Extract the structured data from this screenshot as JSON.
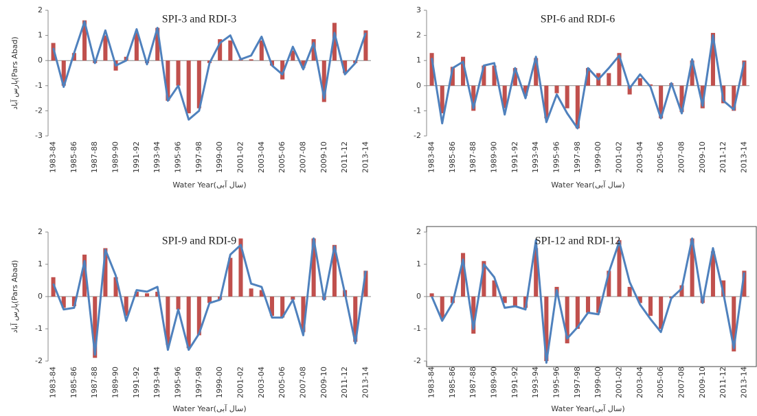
{
  "chart_data": [
    {
      "type": "combo",
      "title": "SPI-3 and RDI-3",
      "x_label": "Water Year(سال آبی)",
      "y_label": "پارس آباد(Pars Abad)",
      "categories": [
        "1983-84",
        null,
        "1985-86",
        null,
        "1987-88",
        null,
        "1989-90",
        null,
        "1991-92",
        null,
        "1993-94",
        null,
        "1995-96",
        null,
        "1997-98",
        null,
        "1999-00",
        null,
        "2001-02",
        null,
        "2003-04",
        null,
        "2005-06",
        null,
        "2007-08",
        null,
        "2009-10",
        null,
        "2011-12",
        null,
        "2013-14"
      ],
      "ylim": [
        -3,
        2
      ],
      "yticks": [
        -3,
        -2,
        -1,
        0,
        1,
        2
      ],
      "series": [
        {
          "type": "bar",
          "color": "#c0504d",
          "values": [
            0.7,
            -1.0,
            0.3,
            1.6,
            -0.1,
            1.0,
            -0.4,
            0.15,
            1.1,
            -0.1,
            1.3,
            -1.6,
            -1.0,
            -2.1,
            -1.9,
            -0.1,
            0.85,
            0.8,
            0.05,
            0.05,
            0.8,
            -0.2,
            -0.75,
            0.4,
            -0.3,
            0.85,
            -1.65,
            1.5,
            -0.5,
            -0.1,
            1.2
          ]
        },
        {
          "type": "line",
          "color": "#4f81bd",
          "values": [
            0.5,
            -1.05,
            0.3,
            1.55,
            -0.1,
            1.2,
            -0.2,
            0.0,
            1.25,
            -0.15,
            1.3,
            -1.6,
            -1.0,
            -2.35,
            -2.0,
            -0.1,
            0.7,
            1.0,
            0.05,
            0.2,
            0.95,
            -0.2,
            -0.55,
            0.55,
            -0.35,
            0.7,
            -1.5,
            1.1,
            -0.55,
            -0.1,
            1.1
          ]
        }
      ]
    },
    {
      "type": "combo",
      "title": "SPI-6 and RDI-6",
      "x_label": "Water Year(سال آبی)",
      "categories": [
        "1983-84",
        null,
        "1985-86",
        null,
        "1987-88",
        null,
        "1989-90",
        null,
        "1991-92",
        null,
        "1993-94",
        null,
        "1995-96",
        null,
        "1997-98",
        null,
        "1999-00",
        null,
        "2001-02",
        null,
        "2003-04",
        null,
        "2005-06",
        null,
        "2007-08",
        null,
        "2009-10",
        null,
        "2011-12",
        null,
        "2013-14"
      ],
      "ylim": [
        -2,
        3
      ],
      "yticks": [
        -2,
        -1,
        0,
        1,
        2,
        3
      ],
      "series": [
        {
          "type": "bar",
          "color": "#c0504d",
          "values": [
            1.3,
            -1.1,
            0.75,
            1.15,
            -1.0,
            0.8,
            0.8,
            -0.9,
            0.7,
            -0.4,
            1.1,
            -1.3,
            -0.3,
            -0.9,
            -1.7,
            0.7,
            0.5,
            0.5,
            1.3,
            -0.35,
            0.3,
            0.05,
            -1.3,
            0.1,
            -1.05,
            1.0,
            -0.9,
            2.1,
            -0.7,
            -1.0,
            1.0
          ]
        },
        {
          "type": "line",
          "color": "#4f81bd",
          "values": [
            1.1,
            -1.5,
            0.7,
            0.95,
            -0.9,
            0.8,
            0.9,
            -1.15,
            0.7,
            -0.5,
            1.15,
            -1.45,
            -0.35,
            -1.1,
            -1.7,
            0.7,
            0.25,
            0.7,
            1.2,
            -0.1,
            0.45,
            -0.05,
            -1.3,
            0.1,
            -1.1,
            1.05,
            -0.8,
            2.0,
            -0.6,
            -0.95,
            0.95
          ]
        }
      ]
    },
    {
      "type": "combo",
      "title": "SPI-9 and RDI-9",
      "x_label": "Water Year(سال آبی)",
      "y_label": "پارس آباد(Pars Abad)",
      "categories": [
        "1983-84",
        null,
        "1985-86",
        null,
        "1987-88",
        null,
        "1989-90",
        null,
        "1991-92",
        null,
        "1993-94",
        null,
        "1995-96",
        null,
        "1997-98",
        null,
        "1999-00",
        null,
        "2001-02",
        null,
        "2003-04",
        null,
        "2005-06",
        null,
        "2007-08",
        null,
        "2009-10",
        null,
        "2011-12",
        null,
        "2013-14"
      ],
      "ylim": [
        -2,
        2
      ],
      "yticks": [
        -2,
        -1,
        0,
        1,
        2
      ],
      "series": [
        {
          "type": "bar",
          "color": "#c0504d",
          "values": [
            0.6,
            -0.35,
            -0.3,
            1.3,
            -1.9,
            1.5,
            0.6,
            -0.6,
            0.15,
            0.1,
            0.15,
            -1.5,
            -0.4,
            -1.6,
            -1.2,
            -0.2,
            -0.1,
            1.2,
            1.8,
            0.25,
            0.2,
            -0.6,
            -0.65,
            -0.1,
            -1.1,
            1.8,
            -0.1,
            1.6,
            0.2,
            -1.4,
            0.8
          ]
        },
        {
          "type": "line",
          "color": "#4f81bd",
          "values": [
            0.4,
            -0.4,
            -0.35,
            1.1,
            -1.8,
            1.45,
            0.65,
            -0.75,
            0.2,
            0.15,
            0.3,
            -1.65,
            -0.4,
            -1.65,
            -1.15,
            -0.2,
            -0.1,
            1.3,
            1.6,
            0.4,
            0.3,
            -0.65,
            -0.65,
            -0.1,
            -1.2,
            1.8,
            -0.1,
            1.55,
            0.1,
            -1.45,
            0.8
          ]
        }
      ]
    },
    {
      "type": "combo",
      "title": "SPI-12 and RDI-12",
      "x_label": "Water Year(سال آبی)",
      "categories": [
        "1983-84",
        null,
        "1985-86",
        null,
        "1987-88",
        null,
        "1989-90",
        null,
        "1991-92",
        null,
        "1993-94",
        null,
        "1995-96",
        null,
        "1997-98",
        null,
        "1999-00",
        null,
        "2001-02",
        null,
        "2003-04",
        null,
        "2005-06",
        null,
        "2007-08",
        null,
        "2009-10",
        null,
        "2011-12",
        null,
        "2013-14"
      ],
      "ylim": [
        -2,
        2
      ],
      "yticks": [
        -2,
        -1,
        0,
        1,
        2
      ],
      "series": [
        {
          "type": "bar",
          "color": "#c0504d",
          "values": [
            0.1,
            -0.7,
            -0.2,
            1.35,
            -1.15,
            1.1,
            0.5,
            -0.2,
            -0.3,
            -0.35,
            1.5,
            -2.0,
            0.3,
            -1.45,
            -1.0,
            -0.5,
            -0.5,
            0.8,
            1.75,
            0.3,
            -0.2,
            -0.6,
            -1.0,
            -0.05,
            0.35,
            1.8,
            -0.2,
            1.4,
            0.5,
            -1.7,
            0.8
          ]
        },
        {
          "type": "line",
          "color": "#4f81bd",
          "values": [
            0.0,
            -0.75,
            -0.2,
            1.15,
            -1.0,
            1.0,
            0.6,
            -0.35,
            -0.3,
            -0.4,
            1.75,
            -2.05,
            0.2,
            -1.3,
            -0.95,
            -0.5,
            -0.55,
            0.75,
            1.7,
            0.45,
            -0.25,
            -0.7,
            -1.1,
            -0.05,
            0.25,
            1.8,
            -0.2,
            1.5,
            0.1,
            -1.6,
            0.75
          ]
        }
      ]
    }
  ]
}
